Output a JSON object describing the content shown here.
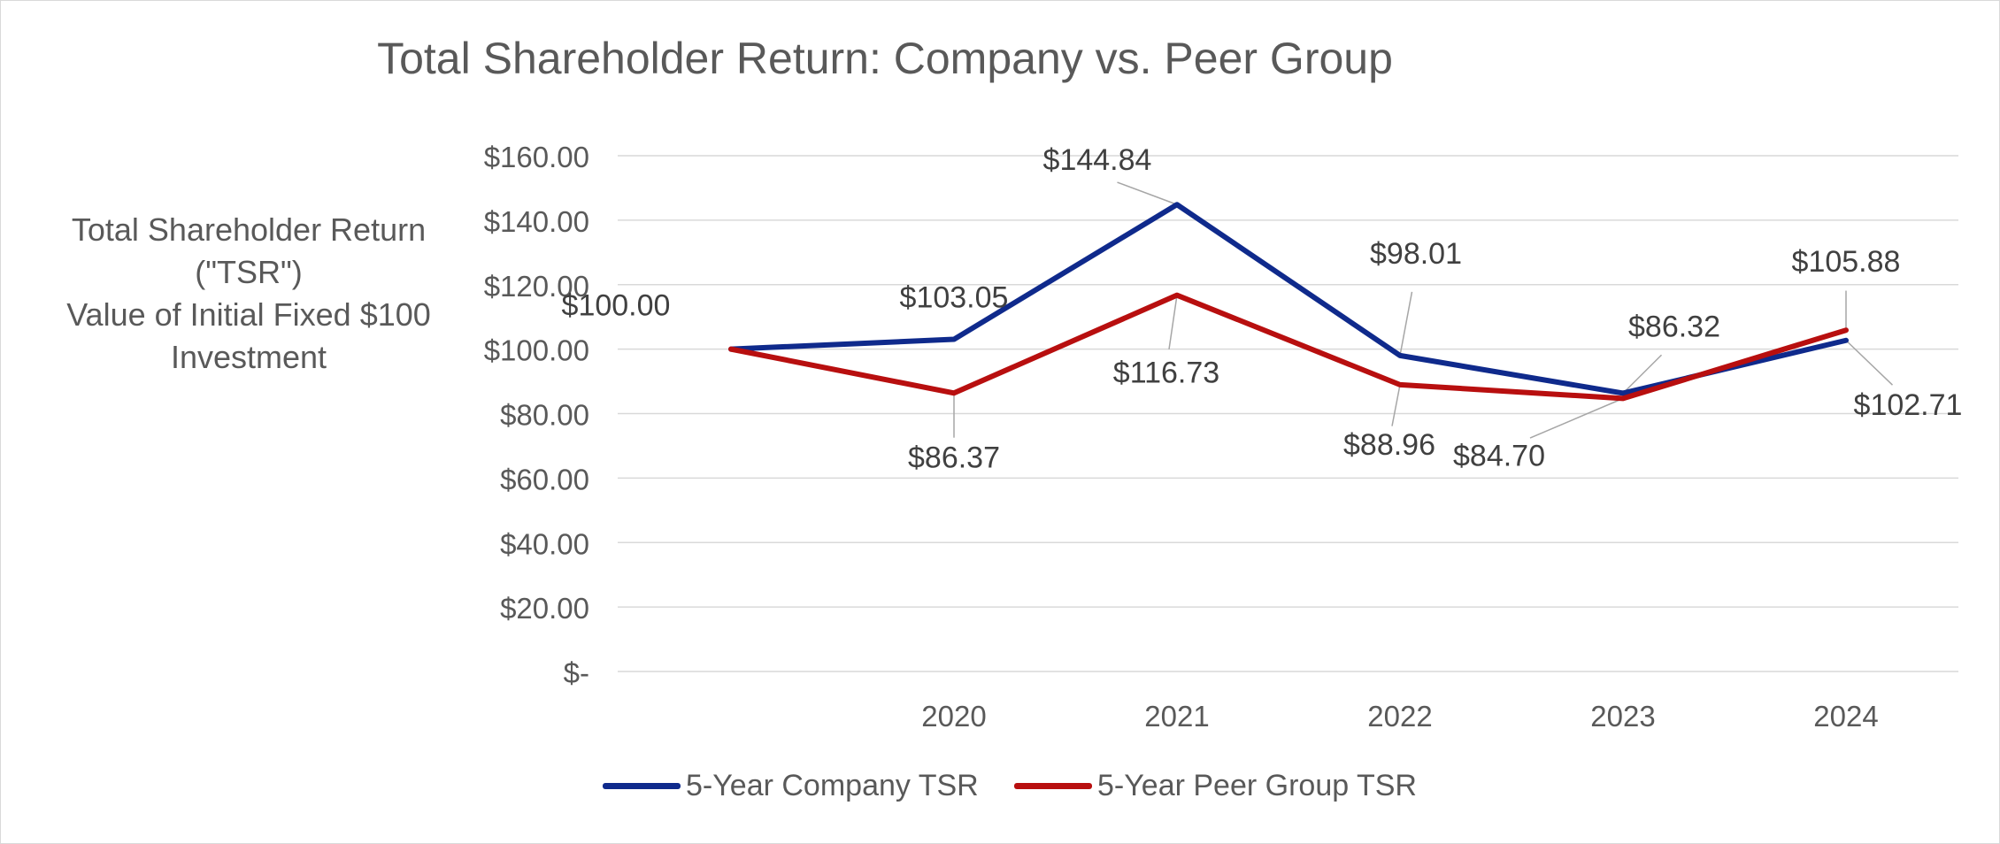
{
  "chart_data": {
    "type": "line",
    "title": "Total Shareholder Return: Company vs. Peer Group",
    "ylabel_lines": [
      "Total Shareholder Return",
      "(\"TSR\")",
      "Value of Initial Fixed $100",
      "Investment"
    ],
    "xlabel": "",
    "categories": [
      "",
      "2020",
      "2021",
      "2022",
      "2023",
      "2024"
    ],
    "yticks": [
      "$-",
      "$20.00",
      "$40.00",
      "$60.00",
      "$80.00",
      "$100.00",
      "$120.00",
      "$140.00",
      "$160.00"
    ],
    "ylim": [
      0,
      160
    ],
    "grid": true,
    "legend_position": "bottom",
    "series": [
      {
        "name": "5-Year Company TSR",
        "color": "#0f2a8c",
        "values": [
          100,
          103.05,
          144.84,
          98.01,
          86.32,
          102.71
        ],
        "labels": [
          "$100.00",
          "$103.05",
          "$144.84",
          "$98.01",
          "$86.32",
          "$102.71"
        ]
      },
      {
        "name": "5-Year Peer Group TSR",
        "color": "#b80f0f",
        "values": [
          100,
          86.37,
          116.73,
          88.96,
          84.7,
          105.88
        ],
        "labels": [
          "",
          "$86.37",
          "$116.73",
          "$88.96",
          "$84.70",
          "$105.88"
        ]
      }
    ]
  }
}
